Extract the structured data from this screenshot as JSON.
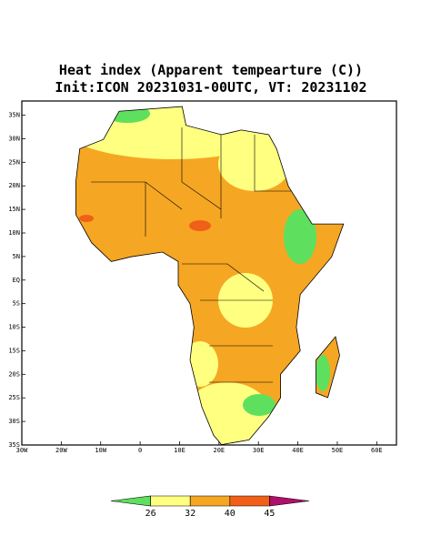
{
  "chart_data": {
    "type": "map",
    "title": "Heat index (Apparent tempearture (C))",
    "subtitle": "Init:ICON 20231031-00UTC, VT: 20231102",
    "lon_range": [
      -30,
      65
    ],
    "lat_range": [
      -35,
      38
    ],
    "lon_ticks": [
      {
        "value": -30,
        "label": "30W"
      },
      {
        "value": -20,
        "label": "20W"
      },
      {
        "value": -10,
        "label": "10W"
      },
      0,
      {
        "value": 10,
        "label": "10E"
      },
      {
        "value": 20,
        "label": "20E"
      },
      {
        "value": 30,
        "label": "30E"
      },
      {
        "value": 40,
        "label": "40E"
      },
      {
        "value": 50,
        "label": "50E"
      },
      {
        "value": 60,
        "label": "60E"
      }
    ],
    "lat_ticks": [
      {
        "value": 35,
        "label": "35N"
      },
      {
        "value": 30,
        "label": "30N"
      },
      {
        "value": 25,
        "label": "25N"
      },
      {
        "value": 20,
        "label": "20N"
      },
      {
        "value": 15,
        "label": "15N"
      },
      {
        "value": 10,
        "label": "10N"
      },
      {
        "value": 5,
        "label": "5N"
      },
      {
        "value": 0,
        "label": "EQ"
      },
      {
        "value": -5,
        "label": "5S"
      },
      {
        "value": -10,
        "label": "10S"
      },
      {
        "value": -15,
        "label": "15S"
      },
      {
        "value": -20,
        "label": "20S"
      },
      {
        "value": -25,
        "label": "25S"
      },
      {
        "value": -30,
        "label": "30S"
      },
      {
        "value": -35,
        "label": "35S"
      }
    ],
    "colorbar": {
      "levels": [
        26,
        32,
        40,
        45
      ],
      "colors": [
        "#5ee05e",
        "#ffff80",
        "#f5a623",
        "#f06018",
        "#b0106a"
      ]
    }
  }
}
